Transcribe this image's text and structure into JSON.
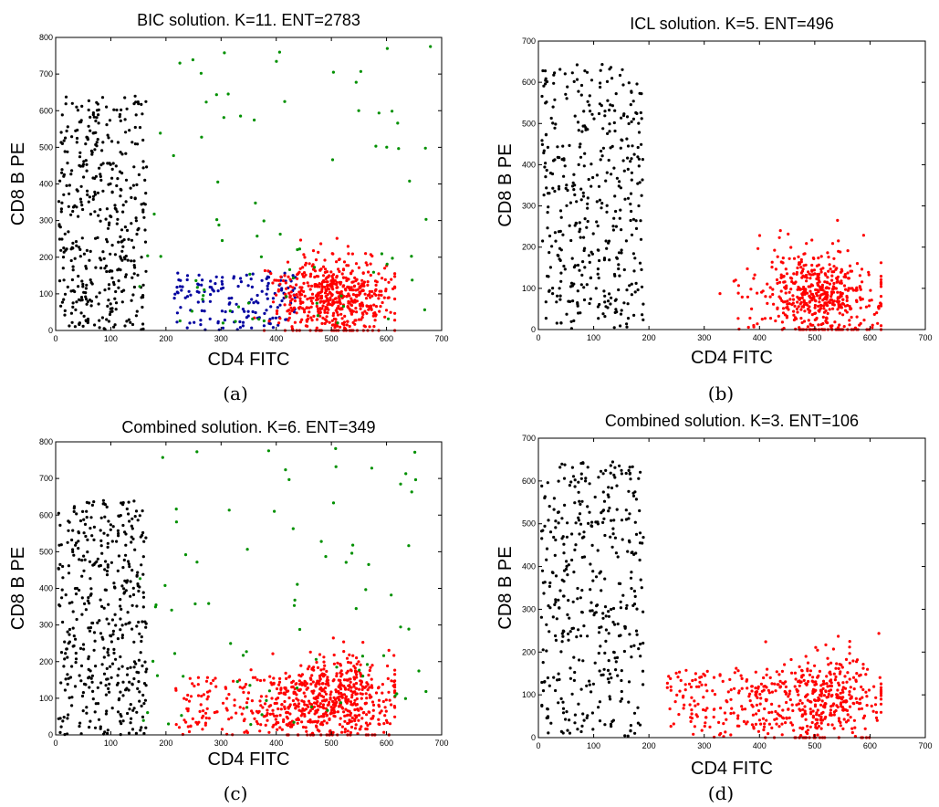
{
  "chart_data": [
    {
      "type": "scatter",
      "title": "BIC solution. K=11. ENT=2783",
      "xlabel": "CD4 FITC",
      "ylabel": "CD8 B PE",
      "caption": "(a)",
      "xlim": [
        0,
        700
      ],
      "ylim": [
        0,
        800
      ],
      "xticks": [
        0,
        100,
        200,
        300,
        400,
        500,
        600,
        700
      ],
      "yticks": [
        0,
        100,
        200,
        300,
        400,
        500,
        600,
        700,
        800
      ],
      "grid": false,
      "clusters": [
        {
          "color": "#000000",
          "shape": "rect",
          "x": [
            5,
            165
          ],
          "y": [
            0,
            640
          ],
          "count": 420
        },
        {
          "color": "#0000a0",
          "shape": "rect",
          "x": [
            215,
            435
          ],
          "y": [
            0,
            160
          ],
          "count": 150
        },
        {
          "color": "#ff0000",
          "shape": "blob",
          "x": [
            305,
            615
          ],
          "y": [
            0,
            270
          ],
          "cx": 505,
          "cy": 95,
          "sx": 55,
          "sy": 55,
          "count": 560
        },
        {
          "color": "#009000",
          "shape": "sparse",
          "x": [
            150,
            680
          ],
          "y": [
            20,
            790
          ],
          "count": 80
        }
      ]
    },
    {
      "type": "scatter",
      "title": "ICL solution. K=5. ENT=496",
      "xlabel": "CD4 FITC",
      "ylabel": "CD8 B PE",
      "caption": "(b)",
      "xlim": [
        0,
        700
      ],
      "ylim": [
        0,
        700
      ],
      "xticks": [
        0,
        100,
        200,
        300,
        400,
        500,
        600,
        700
      ],
      "yticks": [
        0,
        100,
        200,
        300,
        400,
        500,
        600,
        700
      ],
      "grid": false,
      "clusters": [
        {
          "color": "#000000",
          "shape": "rect",
          "x": [
            5,
            190
          ],
          "y": [
            0,
            645
          ],
          "count": 400
        },
        {
          "color": "#ff0000",
          "shape": "blob",
          "x": [
            300,
            620
          ],
          "y": [
            0,
            265
          ],
          "cx": 505,
          "cy": 85,
          "sx": 55,
          "sy": 55,
          "count": 520
        }
      ]
    },
    {
      "type": "scatter",
      "title": "Combined solution. K=6. ENT=349",
      "xlabel": "CD4 FITC",
      "ylabel": "CD8 B PE",
      "caption": "(c)",
      "xlim": [
        0,
        700
      ],
      "ylim": [
        0,
        800
      ],
      "xticks": [
        0,
        100,
        200,
        300,
        400,
        500,
        600,
        700
      ],
      "yticks": [
        0,
        100,
        200,
        300,
        400,
        500,
        600,
        700,
        800
      ],
      "grid": false,
      "clusters": [
        {
          "color": "#000000",
          "shape": "rect",
          "x": [
            5,
            165
          ],
          "y": [
            0,
            640
          ],
          "count": 420
        },
        {
          "color": "#ff0000",
          "shape": "rect",
          "x": [
            215,
            435
          ],
          "y": [
            0,
            160
          ],
          "count": 150
        },
        {
          "color": "#ff0000",
          "shape": "blob",
          "x": [
            305,
            615
          ],
          "y": [
            0,
            270
          ],
          "cx": 505,
          "cy": 95,
          "sx": 55,
          "sy": 55,
          "count": 560
        },
        {
          "color": "#009000",
          "shape": "sparse",
          "x": [
            150,
            680
          ],
          "y": [
            20,
            790
          ],
          "count": 80
        }
      ]
    },
    {
      "type": "scatter",
      "title": "Combined solution. K=3. ENT=106",
      "xlabel": "CD4 FITC",
      "ylabel": "CD8 B PE",
      "caption": "(d)",
      "xlim": [
        0,
        700
      ],
      "ylim": [
        0,
        700
      ],
      "xticks": [
        0,
        100,
        200,
        300,
        400,
        500,
        600,
        700
      ],
      "yticks": [
        0,
        100,
        200,
        300,
        400,
        500,
        600,
        700
      ],
      "grid": false,
      "clusters": [
        {
          "color": "#000000",
          "shape": "rect",
          "x": [
            5,
            190
          ],
          "y": [
            0,
            645
          ],
          "count": 400
        },
        {
          "color": "#ff0000",
          "shape": "rect",
          "x": [
            230,
            420
          ],
          "y": [
            0,
            160
          ],
          "count": 140
        },
        {
          "color": "#ff0000",
          "shape": "blob",
          "x": [
            300,
            620
          ],
          "y": [
            0,
            265
          ],
          "cx": 505,
          "cy": 85,
          "sx": 55,
          "sy": 55,
          "count": 420
        }
      ]
    }
  ]
}
